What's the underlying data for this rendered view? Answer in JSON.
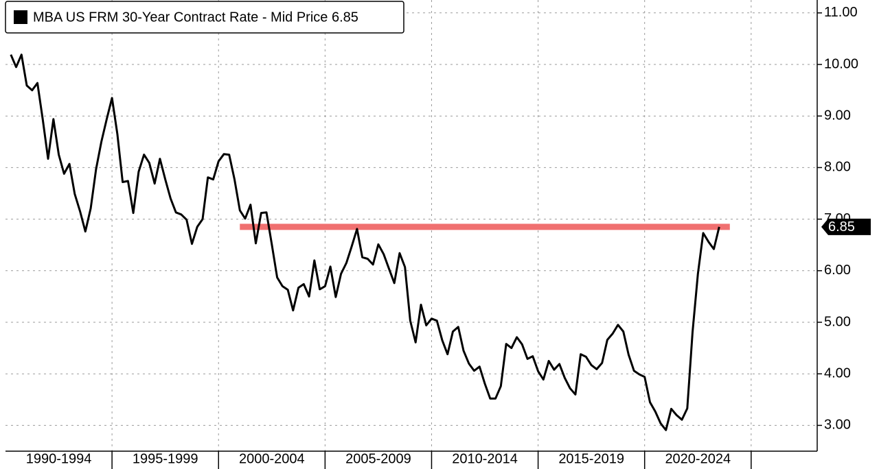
{
  "chart_data": {
    "type": "line",
    "legend": "MBA US FRM 30-Year Contract Rate - Mid Price 6.85",
    "last_value_label": "6.85",
    "x": [
      1990.25,
      1990.5,
      1990.75,
      1991,
      1991.25,
      1991.5,
      1991.75,
      1992,
      1992.25,
      1992.5,
      1992.75,
      1993,
      1993.25,
      1993.5,
      1993.75,
      1994,
      1994.25,
      1994.5,
      1994.75,
      1995,
      1995.25,
      1995.5,
      1995.75,
      1996,
      1996.25,
      1996.5,
      1996.75,
      1997,
      1997.25,
      1997.5,
      1997.75,
      1998,
      1998.25,
      1998.5,
      1998.75,
      1999,
      1999.25,
      1999.5,
      1999.75,
      2000,
      2000.25,
      2000.5,
      2000.75,
      2001,
      2001.25,
      2001.5,
      2001.75,
      2002,
      2002.25,
      2002.5,
      2002.75,
      2003,
      2003.25,
      2003.5,
      2003.75,
      2004,
      2004.25,
      2004.5,
      2004.75,
      2005,
      2005.25,
      2005.5,
      2005.75,
      2006,
      2006.25,
      2006.5,
      2006.75,
      2007,
      2007.25,
      2007.5,
      2007.75,
      2008,
      2008.25,
      2008.5,
      2008.75,
      2009,
      2009.25,
      2009.5,
      2009.75,
      2010,
      2010.25,
      2010.5,
      2010.75,
      2011,
      2011.25,
      2011.5,
      2011.75,
      2012,
      2012.25,
      2012.5,
      2012.75,
      2013,
      2013.25,
      2013.5,
      2013.75,
      2014,
      2014.25,
      2014.5,
      2014.75,
      2015,
      2015.25,
      2015.5,
      2015.75,
      2016,
      2016.25,
      2016.5,
      2016.75,
      2017,
      2017.25,
      2017.5,
      2017.75,
      2018,
      2018.25,
      2018.5,
      2018.75,
      2019,
      2019.25,
      2019.5,
      2019.75,
      2020,
      2020.25,
      2020.5,
      2020.75,
      2021,
      2021.25,
      2021.5,
      2021.75,
      2022,
      2022.25,
      2022.5,
      2022.75,
      2023,
      2023.25,
      2023.5
    ],
    "series": [
      {
        "name": "MBA US FRM 30-Year Contract Rate - Mid Price",
        "color": "#000000",
        "values": [
          10.19,
          9.95,
          10.19,
          9.59,
          9.5,
          9.64,
          8.93,
          8.17,
          8.94,
          8.25,
          7.88,
          8.07,
          7.49,
          7.15,
          6.76,
          7.21,
          7.97,
          8.5,
          8.94,
          9.35,
          8.65,
          7.72,
          7.74,
          7.12,
          7.92,
          8.25,
          8.09,
          7.69,
          8.17,
          7.77,
          7.4,
          7.13,
          7.09,
          6.99,
          6.52,
          6.85,
          7.0,
          7.81,
          7.77,
          8.12,
          8.26,
          8.25,
          7.77,
          7.17,
          7.01,
          7.28,
          6.53,
          7.12,
          7.13,
          6.51,
          5.87,
          5.7,
          5.63,
          5.23,
          5.67,
          5.74,
          5.5,
          6.2,
          5.64,
          5.7,
          6.08,
          5.49,
          5.94,
          6.15,
          6.47,
          6.81,
          6.26,
          6.23,
          6.12,
          6.51,
          6.32,
          6.04,
          5.76,
          6.34,
          6.07,
          5.03,
          4.61,
          5.34,
          4.94,
          5.07,
          5.03,
          4.65,
          4.38,
          4.82,
          4.91,
          4.45,
          4.2,
          4.06,
          4.14,
          3.81,
          3.52,
          3.52,
          3.76,
          4.58,
          4.5,
          4.71,
          4.57,
          4.29,
          4.34,
          4.05,
          3.89,
          4.25,
          4.08,
          4.19,
          3.92,
          3.72,
          3.6,
          4.38,
          4.33,
          4.17,
          4.09,
          4.21,
          4.66,
          4.78,
          4.95,
          4.82,
          4.37,
          4.06,
          3.99,
          3.94,
          3.45,
          3.27,
          3.04,
          2.91,
          3.32,
          3.2,
          3.11,
          3.33,
          4.81,
          5.94,
          6.73,
          6.56,
          6.42,
          6.85
        ]
      }
    ],
    "reference_line": {
      "value": 6.85,
      "x": [
        2001,
        2024
      ],
      "color": "#f07070"
    },
    "xlim": [
      1990,
      2028.1
    ],
    "xticks": [
      {
        "value": 1992.5,
        "label": "1990-1994"
      },
      {
        "value": 1997.5,
        "label": "1995-1999"
      },
      {
        "value": 2002.5,
        "label": "2000-2004"
      },
      {
        "value": 2007.5,
        "label": "2005-2009"
      },
      {
        "value": 2012.5,
        "label": "2010-2014"
      },
      {
        "value": 2017.5,
        "label": "2015-2019"
      },
      {
        "value": 2022.5,
        "label": "2020-2024"
      }
    ],
    "xgrid": [
      1995,
      2000,
      2005,
      2010,
      2015,
      2020,
      2025
    ],
    "ylim": [
      2.5,
      11.25
    ],
    "yticks": [
      {
        "value": 3,
        "label": "3.00"
      },
      {
        "value": 4,
        "label": "4.00"
      },
      {
        "value": 5,
        "label": "5.00"
      },
      {
        "value": 6,
        "label": "6.00"
      },
      {
        "value": 7,
        "label": "7.00"
      },
      {
        "value": 8,
        "label": "8.00"
      },
      {
        "value": 9,
        "label": "9.00"
      },
      {
        "value": 10,
        "label": "10.00"
      },
      {
        "value": 11,
        "label": "11.00"
      }
    ],
    "grid": true
  }
}
